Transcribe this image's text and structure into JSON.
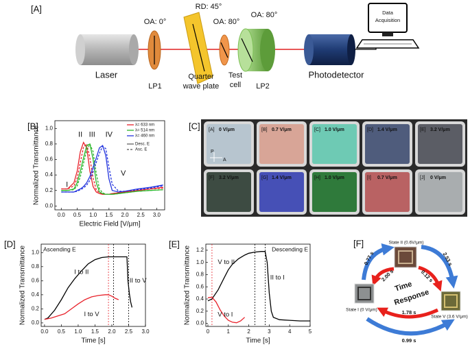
{
  "panels": {
    "A": {
      "label": "[A]",
      "laser": "Laser",
      "lp1": {
        "oa": "OA: 0°",
        "name": "LP1"
      },
      "qwp": {
        "rd": "RD: 45°",
        "name": [
          "Quarter",
          "wave plate"
        ]
      },
      "cell": {
        "oa": "OA: 80°",
        "name": [
          "Test",
          "cell"
        ]
      },
      "lp2": {
        "oa": "OA: 80°",
        "name": "LP2"
      },
      "detector": "Photodetector",
      "daq": [
        "Data",
        "Acquisition"
      ]
    },
    "C": {
      "label": "[C]",
      "axes_labels": [
        "P",
        "A"
      ],
      "tiles": [
        {
          "label": "[A]",
          "field": "0 V/μm",
          "color": "#b7c5cf"
        },
        {
          "label": "[B]",
          "field": "0.7 V/μm",
          "color": "#d8a597"
        },
        {
          "label": "[C]",
          "field": "1.0 V/μm",
          "color": "#6ecab4"
        },
        {
          "label": "[D]",
          "field": "1.4 V/μm",
          "color": "#4f5c7c"
        },
        {
          "label": "[E]",
          "field": "3.2 V/μm",
          "color": "#5b5d65"
        },
        {
          "label": "[F]",
          "field": "3.2 V/μm",
          "color": "#3d4b42"
        },
        {
          "label": "[G]",
          "field": "1.4 V/μm",
          "color": "#4650b6"
        },
        {
          "label": "[H]",
          "field": "1.0 V/μm",
          "color": "#2f7a3b"
        },
        {
          "label": "[I]",
          "field": "0.7 V/μm",
          "color": "#b96263"
        },
        {
          "label": "[J]",
          "field": "0 V/μm",
          "color": "#a9adaf"
        }
      ]
    },
    "F": {
      "label": "[F]",
      "states": [
        "State II (0.6V/μm)",
        "State I (0 V/μm)",
        "State V (3.6 V/μm)"
      ],
      "times": [
        "0.77 s",
        "2.53 s",
        "2.00 s",
        "0.12 s",
        "1.78 s",
        "0.99 s"
      ],
      "center": [
        "Time",
        "Response"
      ]
    }
  },
  "chart_data": [
    {
      "type": "line",
      "panel_label": "[B]",
      "xlabel": "Electric Field [V/μm]",
      "ylabel": "Normalized Transmittance",
      "x": [
        0,
        0.2,
        0.4,
        0.5,
        0.6,
        0.7,
        0.8,
        0.9,
        1.0,
        1.1,
        1.2,
        1.3,
        1.4,
        1.5,
        1.6,
        1.8,
        2.0,
        2.4,
        2.8,
        3.2
      ],
      "xlim": [
        -0.2,
        3.25
      ],
      "ylim": [
        -0.05,
        1.1
      ],
      "xticks": [
        {
          "value": 0,
          "label": "0.0"
        },
        {
          "value": 0.5,
          "label": "0.5"
        },
        {
          "value": 1,
          "label": "1.0"
        },
        {
          "value": 1.5,
          "label": "1.5"
        },
        {
          "value": 2,
          "label": "2.0"
        },
        {
          "value": 2.5,
          "label": "2.5"
        },
        {
          "value": 3,
          "label": "3.0"
        }
      ],
      "yticks": [
        {
          "value": 0,
          "label": "0.0"
        },
        {
          "value": 0.2,
          "label": "0.2"
        },
        {
          "value": 0.4,
          "label": "0.4"
        },
        {
          "value": 0.6,
          "label": "0.6"
        },
        {
          "value": 0.8,
          "label": "0.8"
        },
        {
          "value": 1,
          "label": "1.0"
        }
      ],
      "legend": "upper right",
      "series": [
        {
          "name": "λ= 633 nm",
          "color": "#e8212a",
          "values": [
            0.22,
            0.22,
            0.3,
            0.45,
            0.7,
            0.82,
            0.75,
            0.45,
            0.25,
            0.18,
            0.16,
            0.15,
            0.15,
            0.15,
            0.16,
            0.17,
            0.18,
            0.2,
            0.22,
            0.24
          ],
          "asc_values": [
            0.22,
            0.22,
            0.26,
            0.36,
            0.56,
            0.76,
            0.8,
            0.62,
            0.36,
            0.21,
            0.17,
            0.16,
            0.15,
            0.15,
            0.16,
            0.17,
            0.18,
            0.2,
            0.22,
            0.23
          ]
        },
        {
          "name": "λ= 514 nm",
          "color": "#2bb52b",
          "values": [
            0.2,
            0.2,
            0.22,
            0.3,
            0.45,
            0.62,
            0.78,
            0.8,
            0.6,
            0.3,
            0.18,
            0.16,
            0.15,
            0.15,
            0.15,
            0.16,
            0.17,
            0.19,
            0.2,
            0.21
          ],
          "asc_values": [
            0.2,
            0.2,
            0.21,
            0.26,
            0.38,
            0.55,
            0.72,
            0.8,
            0.7,
            0.42,
            0.22,
            0.17,
            0.15,
            0.15,
            0.15,
            0.16,
            0.17,
            0.19,
            0.2,
            0.21
          ]
        },
        {
          "name": "λ= 460 nm",
          "color": "#2233dd",
          "values": [
            0.18,
            0.18,
            0.18,
            0.2,
            0.22,
            0.25,
            0.3,
            0.38,
            0.5,
            0.62,
            0.75,
            0.78,
            0.65,
            0.35,
            0.2,
            0.18,
            0.19,
            0.22,
            0.24,
            0.27
          ],
          "asc_values": [
            0.18,
            0.18,
            0.18,
            0.19,
            0.21,
            0.23,
            0.27,
            0.33,
            0.44,
            0.56,
            0.68,
            0.77,
            0.74,
            0.5,
            0.28,
            0.19,
            0.19,
            0.21,
            0.23,
            0.26
          ]
        }
      ],
      "line_styles": [
        {
          "name": "Desc. E",
          "dash": "solid"
        },
        {
          "name": "Asc. E",
          "dash": "dashed"
        }
      ],
      "annotations": [
        {
          "text": "I",
          "color": "#111"
        },
        {
          "text": "II",
          "color": "#111"
        },
        {
          "text": "III",
          "color": "#111"
        },
        {
          "text": "IV",
          "color": "#111"
        },
        {
          "text": "V",
          "color": "#111"
        }
      ]
    },
    {
      "type": "line",
      "panel_label": "[D]",
      "title": "Ascending E",
      "xlabel": "Time [s]",
      "ylabel": "Normalized Transmittance",
      "xlim": [
        -0.1,
        3.0
      ],
      "ylim": [
        -0.05,
        1.12
      ],
      "xticks": [
        {
          "value": 0,
          "label": "0.0"
        },
        {
          "value": 0.5,
          "label": "0.5"
        },
        {
          "value": 1,
          "label": "1.0"
        },
        {
          "value": 1.5,
          "label": "1.5"
        },
        {
          "value": 2,
          "label": "2.0"
        },
        {
          "value": 2.5,
          "label": "2.5"
        },
        {
          "value": 3,
          "label": "3.0"
        }
      ],
      "yticks": [
        {
          "value": 0,
          "label": "0.0"
        },
        {
          "value": 0.2,
          "label": "0.2"
        },
        {
          "value": 0.4,
          "label": "0.4"
        },
        {
          "value": 0.6,
          "label": "0.6"
        },
        {
          "value": 0.8,
          "label": "0.8"
        },
        {
          "value": 1,
          "label": "1.0"
        }
      ],
      "series": [
        {
          "color": "#000000",
          "x": [
            0,
            0.1,
            0.3,
            0.5,
            0.7,
            0.9,
            1.1,
            1.3,
            1.5,
            1.7,
            1.9,
            2.05,
            2.2,
            2.4,
            2.45,
            2.48,
            2.52,
            2.56,
            2.6
          ],
          "values": [
            0.05,
            0.07,
            0.18,
            0.33,
            0.5,
            0.63,
            0.74,
            0.84,
            0.9,
            0.93,
            0.94,
            0.94,
            0.94,
            0.94,
            0.94,
            0.6,
            0.42,
            0.3,
            0.22
          ]
        },
        {
          "color": "#e8212a",
          "x": [
            0,
            0.2,
            0.4,
            0.6,
            0.8,
            1.0,
            1.2,
            1.4,
            1.6,
            1.8,
            1.9,
            2.0,
            2.1,
            2.2
          ],
          "values": [
            0.05,
            0.07,
            0.1,
            0.13,
            0.2,
            0.27,
            0.33,
            0.37,
            0.39,
            0.4,
            0.4,
            0.38,
            0.35,
            0.33
          ]
        }
      ],
      "markers": [
        {
          "x": 1.9,
          "color": "#e8212a"
        },
        {
          "x": 2.05,
          "color": "#000000"
        },
        {
          "x": 2.5,
          "color": "#000000"
        }
      ],
      "annotations": [
        {
          "text": "I to II",
          "color": "#111"
        },
        {
          "text": "I to V",
          "color": "#e8212a"
        },
        {
          "text": "II to V",
          "color": "#111"
        }
      ]
    },
    {
      "type": "line",
      "panel_label": "[E]",
      "title": "Descending E",
      "xlabel": "Time [s]",
      "ylabel": "Normalized Transmittance",
      "xlim": [
        -0.1,
        5
      ],
      "ylim": [
        -0.05,
        1.3
      ],
      "xticks": [
        0,
        1,
        2,
        3,
        4,
        5
      ],
      "yticks": [
        {
          "value": 0,
          "label": "0.0"
        },
        {
          "value": 0.2,
          "label": "0.2"
        },
        {
          "value": 0.4,
          "label": "0.4"
        },
        {
          "value": 0.6,
          "label": "0.6"
        },
        {
          "value": 0.8,
          "label": "0.8"
        },
        {
          "value": 1,
          "label": "1.0"
        },
        {
          "value": 1.2,
          "label": "1.2"
        }
      ],
      "series": [
        {
          "color": "#000000",
          "x": [
            0,
            0.2,
            0.5,
            0.8,
            1.0,
            1.2,
            1.5,
            1.8,
            2.0,
            2.3,
            2.6,
            2.8,
            2.9,
            3.0,
            3.1,
            3.2,
            3.5,
            4,
            4.5,
            5
          ],
          "values": [
            0.37,
            0.4,
            0.55,
            0.75,
            0.88,
            0.97,
            1.06,
            1.12,
            1.15,
            1.17,
            1.18,
            1.18,
            1.0,
            0.5,
            0.2,
            0.1,
            0.06,
            0.05,
            0.04,
            0.04
          ]
        },
        {
          "color": "#e8212a",
          "x": [
            0,
            0.2,
            0.4,
            0.6,
            0.8,
            1.0,
            1.2,
            1.4,
            1.6,
            1.8
          ],
          "values": [
            0.42,
            0.43,
            0.35,
            0.22,
            0.12,
            0.05,
            0.02,
            0.01,
            0.04,
            0.1
          ]
        }
      ],
      "markers": [
        {
          "x": 0.2,
          "color": "#e8212a"
        },
        {
          "x": 2.3,
          "color": "#000000"
        },
        {
          "x": 2.8,
          "color": "#000000"
        }
      ],
      "annotations": [
        {
          "text": "V to II",
          "color": "#111"
        },
        {
          "text": "II to I",
          "color": "#111"
        },
        {
          "text": "V to I",
          "color": "#e8212a"
        }
      ]
    }
  ]
}
